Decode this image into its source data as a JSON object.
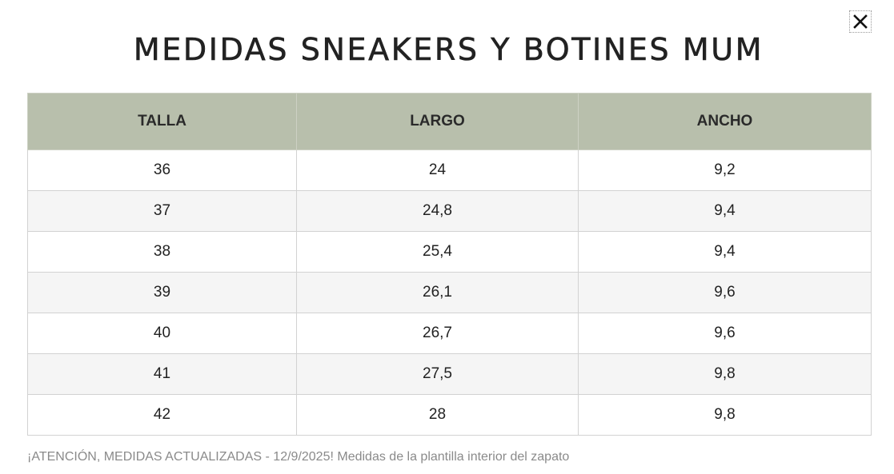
{
  "modal": {
    "title": "MEDIDAS SNEAKERS Y BOTINES MUM",
    "close_icon": "close-icon"
  },
  "table": {
    "headers": [
      "TALLA",
      "LARGO",
      "ANCHO"
    ],
    "rows": [
      [
        "36",
        "24",
        "9,2"
      ],
      [
        "37",
        "24,8",
        "9,4"
      ],
      [
        "38",
        "25,4",
        "9,4"
      ],
      [
        "39",
        "26,1",
        "9,6"
      ],
      [
        "40",
        "26,7",
        "9,6"
      ],
      [
        "41",
        "27,5",
        "9,8"
      ],
      [
        "42",
        "28",
        "9,8"
      ]
    ]
  },
  "note": "¡ATENCIÓN, MEDIDAS ACTUALIZADAS - 12/9/2025! Medidas de la plantilla interior del zapato",
  "colors": {
    "header_background": "#b8bfac",
    "stripe_background": "#f5f5f5",
    "border": "#d2d2d2",
    "title_text": "#222222",
    "note_text": "#8a8a8a"
  }
}
